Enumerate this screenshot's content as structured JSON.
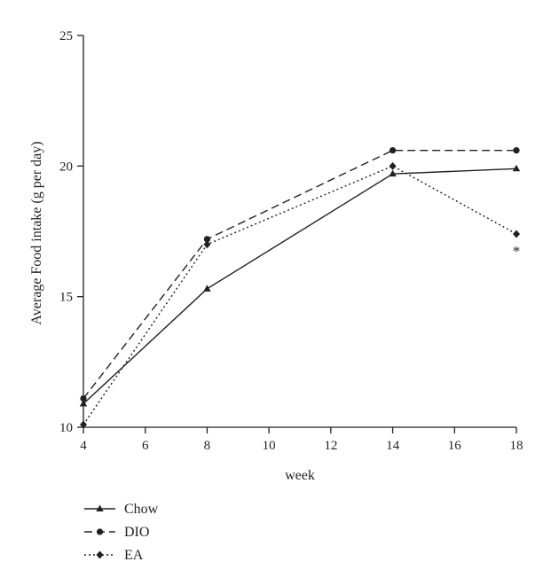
{
  "chart_data": {
    "type": "line",
    "title": "",
    "xlabel": "week",
    "ylabel": "Average Food intake (g per day)",
    "xlim": [
      4,
      18
    ],
    "ylim": [
      10,
      25
    ],
    "xticks": [
      4,
      6,
      8,
      10,
      12,
      14,
      16,
      18
    ],
    "yticks": [
      10,
      15,
      20,
      25
    ],
    "grid": false,
    "legend_position": "bottom-left",
    "x": [
      4,
      8,
      14,
      18
    ],
    "series": [
      {
        "name": "Chow",
        "values": [
          10.9,
          15.3,
          19.7,
          19.9
        ],
        "marker": "triangle",
        "dash": "solid",
        "color": "#231f20"
      },
      {
        "name": "DIO",
        "values": [
          11.1,
          17.2,
          20.6,
          20.6
        ],
        "marker": "circle",
        "dash": "dashed",
        "color": "#231f20"
      },
      {
        "name": "EA",
        "values": [
          10.1,
          17.0,
          20.0,
          17.4
        ],
        "marker": "diamond",
        "dash": "dotted",
        "color": "#231f20"
      }
    ],
    "annotations": [
      {
        "text": "*",
        "x": 18,
        "y": 17.4,
        "series": "EA"
      }
    ]
  }
}
